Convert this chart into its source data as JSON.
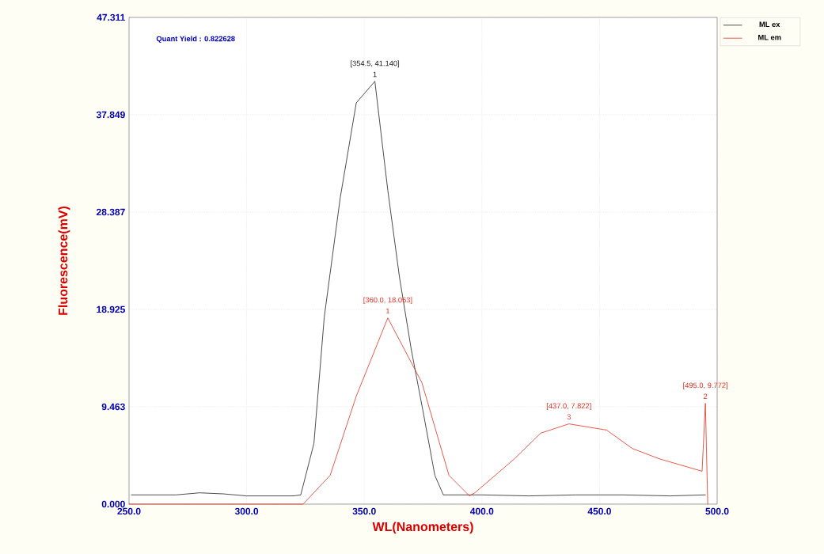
{
  "chart_data": {
    "type": "line",
    "xlabel": "WL(Nanometers)",
    "ylabel": "Fluorescence(mV)",
    "xlim": [
      250,
      500
    ],
    "ylim": [
      0,
      47.311
    ],
    "xticks": [
      {
        "value": 250,
        "label": "250.0"
      },
      {
        "value": 300,
        "label": "300.0"
      },
      {
        "value": 350,
        "label": "350.0"
      },
      {
        "value": 400,
        "label": "400.0"
      },
      {
        "value": 450,
        "label": "450.0"
      },
      {
        "value": 500,
        "label": "500.0"
      }
    ],
    "yticks": [
      {
        "value": 0,
        "label": "0.000"
      },
      {
        "value": 9.463,
        "label": "9.463"
      },
      {
        "value": 18.925,
        "label": "18.925"
      },
      {
        "value": 28.387,
        "label": "28.387"
      },
      {
        "value": 37.849,
        "label": "37.849"
      },
      {
        "value": 47.311,
        "label": "47.311"
      }
    ],
    "grid": true,
    "legend": "top right",
    "marker": "none",
    "line_style": "solid",
    "series": [
      {
        "name": "ML ex",
        "color": "#202020",
        "x": [
          251,
          260,
          270,
          280,
          290,
          300,
          310,
          320,
          323,
          328.6,
          333,
          339.8,
          346.6,
          354.5,
          360,
          365,
          370,
          375,
          380,
          383.6,
          400,
          420,
          440,
          460,
          480,
          495
        ],
        "values": [
          0.9,
          0.9,
          0.9,
          1.1,
          1.0,
          0.8,
          0.8,
          0.8,
          0.9,
          5.9,
          18.2,
          29.8,
          39.0,
          41.1,
          30.5,
          22.0,
          15.0,
          9.0,
          2.8,
          0.9,
          0.9,
          0.8,
          0.9,
          0.9,
          0.8,
          0.9
        ]
      },
      {
        "name": "ML em",
        "color": "#e03020",
        "x": [
          250,
          300,
          324,
          335.5,
          346.6,
          360,
          374.5,
          386,
          394.7,
          397,
          413.8,
          425,
          437,
          453,
          464,
          475.5,
          493.6,
          495,
          496
        ],
        "values": [
          0,
          0,
          0,
          2.8,
          10.5,
          18.1,
          11.8,
          2.8,
          0.8,
          1.1,
          4.4,
          6.9,
          7.8,
          7.2,
          5.4,
          4.4,
          3.2,
          9.8,
          0
        ]
      }
    ],
    "annotations": [
      "Quant Yield : 0.822628",
      {
        "text": "[354.5, 41.140]",
        "x": 354.5,
        "y": 41.1
      },
      {
        "text": "1",
        "x": 354.5,
        "y": 41.1
      },
      {
        "text": "[360.0, 18.063]",
        "x": 360,
        "y": 18.1
      },
      {
        "text": "1",
        "x": 360,
        "y": 18.1
      },
      {
        "text": "[437.0, 7.822]",
        "x": 437,
        "y": 7.8
      },
      {
        "text": "3",
        "x": 437,
        "y": 7.8
      },
      {
        "text": "[495.0, 9.772]",
        "x": 495,
        "y": 9.8
      },
      {
        "text": "2",
        "x": 495,
        "y": 9.8
      }
    ]
  }
}
